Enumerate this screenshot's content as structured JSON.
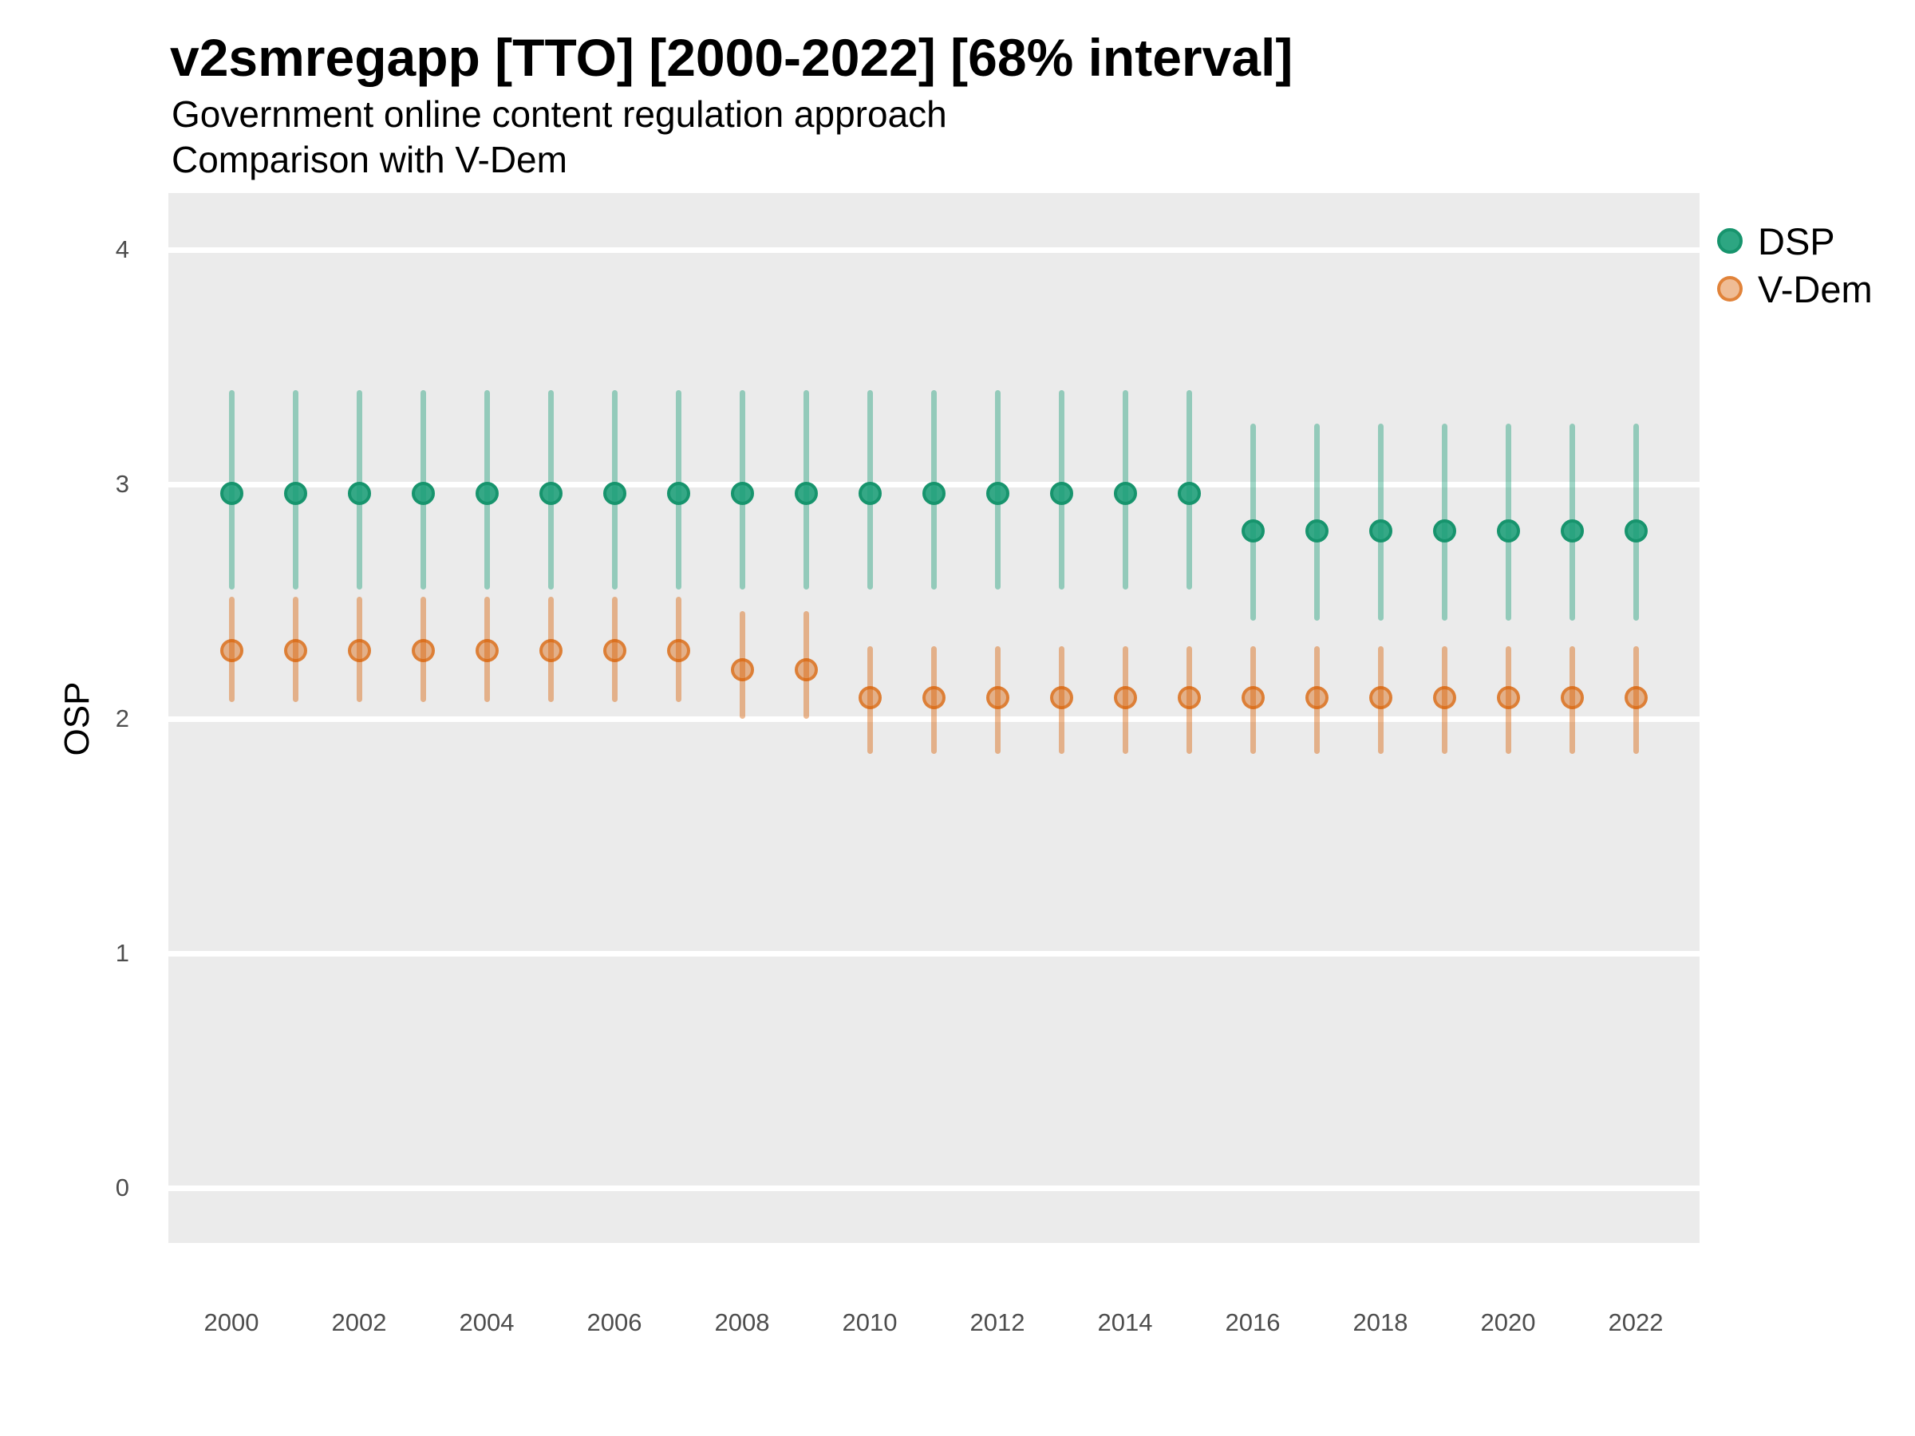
{
  "header": {
    "title": "v2smregapp [TTO] [2000-2022] [68% interval]",
    "subtitle_line1": "Government online content regulation approach",
    "subtitle_line2": "Comparison with V-Dem"
  },
  "axes": {
    "y_title": "OSP",
    "y_tick_labels": [
      "0",
      "1",
      "2",
      "3",
      "4"
    ],
    "x_tick_labels": [
      "2000",
      "2002",
      "2004",
      "2006",
      "2008",
      "2010",
      "2012",
      "2014",
      "2016",
      "2018",
      "2020",
      "2022"
    ]
  },
  "legend": {
    "items": [
      {
        "label": "DSP",
        "color": "#1B9E77"
      },
      {
        "label": "V-Dem",
        "color": "#D95F02"
      }
    ]
  },
  "colors": {
    "panel_background": "#EBEBEB",
    "gridline": "#FFFFFF",
    "dsp_base": "#1B9E77",
    "vdem_base": "#D95F02"
  },
  "chart_data": {
    "type": "scatter",
    "subtype": "point-interval",
    "interval": "68%",
    "title": "v2smregapp [TTO] [2000-2022] [68% interval]",
    "subtitle": [
      "Government online content regulation approach",
      "Comparison with V-Dem"
    ],
    "ylabel": "OSP",
    "xlabel": "",
    "ylim": [
      -0.24,
      4.24
    ],
    "y_ticks": [
      0,
      1,
      2,
      3,
      4
    ],
    "grid": "major-horizontal-only",
    "legend_position": "right",
    "x": [
      2000,
      2001,
      2002,
      2003,
      2004,
      2005,
      2006,
      2007,
      2008,
      2009,
      2010,
      2011,
      2012,
      2013,
      2014,
      2015,
      2016,
      2017,
      2018,
      2019,
      2020,
      2021,
      2022
    ],
    "series": [
      {
        "name": "DSP",
        "color": "#1B9E77",
        "est": [
          2.96,
          2.96,
          2.96,
          2.96,
          2.96,
          2.96,
          2.96,
          2.96,
          2.96,
          2.96,
          2.96,
          2.96,
          2.96,
          2.96,
          2.96,
          2.96,
          2.8,
          2.8,
          2.8,
          2.8,
          2.8,
          2.8,
          2.8
        ],
        "lo": [
          2.55,
          2.55,
          2.55,
          2.55,
          2.55,
          2.55,
          2.55,
          2.55,
          2.55,
          2.55,
          2.55,
          2.55,
          2.55,
          2.55,
          2.55,
          2.55,
          2.42,
          2.42,
          2.42,
          2.42,
          2.42,
          2.42,
          2.42
        ],
        "hi": [
          3.4,
          3.4,
          3.4,
          3.4,
          3.4,
          3.4,
          3.4,
          3.4,
          3.4,
          3.4,
          3.4,
          3.4,
          3.4,
          3.4,
          3.4,
          3.4,
          3.26,
          3.26,
          3.26,
          3.26,
          3.26,
          3.26,
          3.26
        ]
      },
      {
        "name": "V-Dem",
        "color": "#D95F02",
        "est": [
          2.29,
          2.29,
          2.29,
          2.29,
          2.29,
          2.29,
          2.29,
          2.29,
          2.21,
          2.21,
          2.09,
          2.09,
          2.09,
          2.09,
          2.09,
          2.09,
          2.09,
          2.09,
          2.09,
          2.09,
          2.09,
          2.09,
          2.09
        ],
        "lo": [
          2.07,
          2.07,
          2.07,
          2.07,
          2.07,
          2.07,
          2.07,
          2.07,
          2.0,
          2.0,
          1.85,
          1.85,
          1.85,
          1.85,
          1.85,
          1.85,
          1.85,
          1.85,
          1.85,
          1.85,
          1.85,
          1.85,
          1.85
        ],
        "hi": [
          2.52,
          2.52,
          2.52,
          2.52,
          2.52,
          2.52,
          2.52,
          2.52,
          2.46,
          2.46,
          2.31,
          2.31,
          2.31,
          2.31,
          2.31,
          2.31,
          2.31,
          2.31,
          2.31,
          2.31,
          2.31,
          2.31,
          2.31
        ]
      }
    ]
  }
}
